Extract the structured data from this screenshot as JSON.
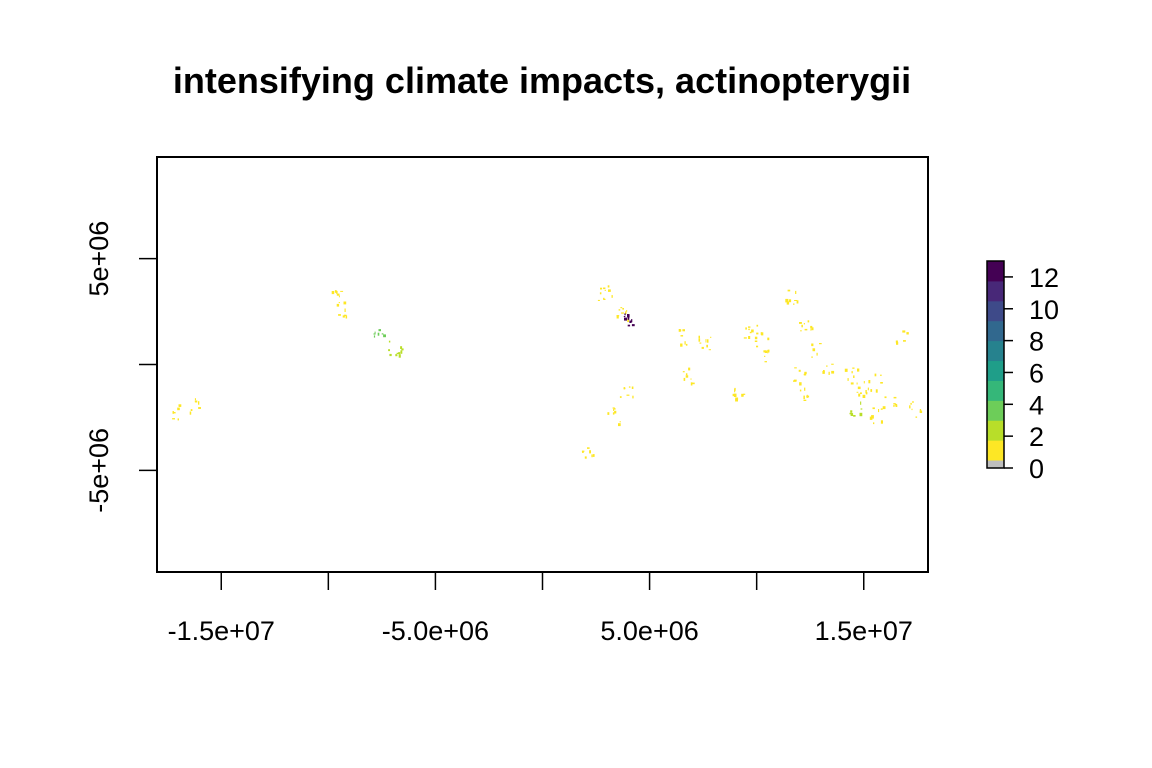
{
  "chart_data": {
    "type": "heatmap",
    "title": "intensifying climate impacts, actinopterygii",
    "xlabel": "",
    "ylabel": "",
    "xlim": [
      -18000000,
      18000000
    ],
    "ylim": [
      -9800000,
      9800000
    ],
    "x_ticks": [
      -18000000,
      -15000000,
      -10000000,
      -5000000,
      0,
      5000000,
      10000000,
      15000000
    ],
    "x_tick_labels": [
      {
        "value": -15000000,
        "label": "-1.5e+07"
      },
      {
        "value": -5000000,
        "label": "-5.0e+06"
      },
      {
        "value": 5000000,
        "label": "5.0e+06"
      },
      {
        "value": 15000000,
        "label": "1.5e+07"
      }
    ],
    "y_ticks": [
      -5000000,
      0,
      5000000
    ],
    "y_tick_labels": [
      {
        "value": 5000000,
        "label": "5e+06"
      },
      {
        "value": -5000000,
        "label": "-5e+06"
      }
    ],
    "legend": {
      "placement": "right",
      "range": [
        0,
        13
      ],
      "tick_labels": [
        "0",
        "2",
        "4",
        "6",
        "8",
        "10",
        "12"
      ],
      "colors": [
        "#bebebe",
        "#fde725",
        "#b8de29",
        "#6dcd59",
        "#35b779",
        "#1f9e89",
        "#26828e",
        "#31688e",
        "#3e4a89",
        "#482878",
        "#440154"
      ]
    },
    "grid": false,
    "clusters": [
      {
        "x": -17000000,
        "y": -2200000,
        "value": 1
      },
      {
        "x": -16200000,
        "y": -1900000,
        "value": 1
      },
      {
        "x": -9600000,
        "y": 3300000,
        "value": 1
      },
      {
        "x": -9300000,
        "y": 2600000,
        "value": 1
      },
      {
        "x": -7600000,
        "y": 1300000,
        "value": 3
      },
      {
        "x": -6900000,
        "y": 800000,
        "value": 2
      },
      {
        "x": 2900000,
        "y": 3400000,
        "value": 1
      },
      {
        "x": 3700000,
        "y": 2500000,
        "value": 1
      },
      {
        "x": 3900000,
        "y": 2100000,
        "value": 12
      },
      {
        "x": 3300000,
        "y": -2400000,
        "value": 1
      },
      {
        "x": 3900000,
        "y": -1400000,
        "value": 1
      },
      {
        "x": 2100000,
        "y": -4100000,
        "value": 1
      },
      {
        "x": 6500000,
        "y": 1300000,
        "value": 1
      },
      {
        "x": 7600000,
        "y": 1000000,
        "value": 1
      },
      {
        "x": 6800000,
        "y": -500000,
        "value": 1
      },
      {
        "x": 9700000,
        "y": 1500000,
        "value": 1
      },
      {
        "x": 10200000,
        "y": 1200000,
        "value": 1
      },
      {
        "x": 11600000,
        "y": 3200000,
        "value": 1
      },
      {
        "x": 12300000,
        "y": 1800000,
        "value": 1
      },
      {
        "x": 12600000,
        "y": 700000,
        "value": 1
      },
      {
        "x": 13200000,
        "y": -200000,
        "value": 1
      },
      {
        "x": 12000000,
        "y": -500000,
        "value": 1
      },
      {
        "x": 10500000,
        "y": 500000,
        "value": 1
      },
      {
        "x": 12200000,
        "y": -1300000,
        "value": 1
      },
      {
        "x": 14400000,
        "y": -500000,
        "value": 1
      },
      {
        "x": 14900000,
        "y": -1100000,
        "value": 1
      },
      {
        "x": 15500000,
        "y": -800000,
        "value": 1
      },
      {
        "x": 14600000,
        "y": -2100000,
        "value": 2
      },
      {
        "x": 15600000,
        "y": -2400000,
        "value": 1
      },
      {
        "x": 16200000,
        "y": -1700000,
        "value": 1
      },
      {
        "x": 17400000,
        "y": -2100000,
        "value": 1
      },
      {
        "x": 16700000,
        "y": 1400000,
        "value": 1
      },
      {
        "x": 9200000,
        "y": -1400000,
        "value": 1
      }
    ]
  }
}
